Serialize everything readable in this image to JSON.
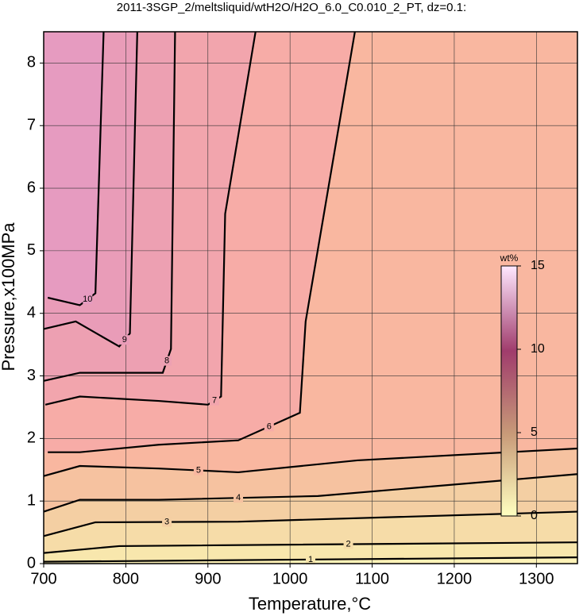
{
  "chart_data": {
    "type": "contour",
    "title": "2011-3SGP_2/meltsliquid/wtH2O/H2O_6.0_C0.010_2_PT, dz=0.1:",
    "xlabel": "Temperature,°C",
    "ylabel": "Pressure,x100MPa",
    "xlim": [
      700,
      1350
    ],
    "ylim": [
      0,
      8.5
    ],
    "xticks": [
      700,
      800,
      900,
      1000,
      1100,
      1200,
      1300
    ],
    "yticks": [
      0,
      1,
      2,
      3,
      4,
      5,
      6,
      7,
      8
    ],
    "grid": true,
    "base_color": "#fff3b8",
    "contours": [
      {
        "level": 1,
        "fill": "#f8e7ad",
        "x": [
          700,
          1350
        ],
        "y": [
          0.03,
          0.1
        ]
      },
      {
        "level": 2,
        "fill": "#f6dca8",
        "x": [
          700,
          792,
          1350
        ],
        "y": [
          0.17,
          0.28,
          0.34
        ]
      },
      {
        "level": 3,
        "fill": "#f4cfa3",
        "x": [
          700,
          763,
          937,
          1350
        ],
        "y": [
          0.44,
          0.66,
          0.67,
          0.83
        ]
      },
      {
        "level": 4,
        "fill": "#f6c2a0",
        "x": [
          700,
          744,
          840,
          1034,
          1350
        ],
        "y": [
          0.83,
          1.02,
          1.02,
          1.08,
          1.43
        ]
      },
      {
        "level": 5,
        "fill": "#f9b7a0",
        "x": [
          700,
          744,
          840,
          937,
          1082,
          1350
        ],
        "y": [
          1.4,
          1.56,
          1.52,
          1.46,
          1.65,
          1.84
        ]
      },
      {
        "level": 6,
        "fill": "#f7aca7",
        "x": [
          705,
          744,
          840,
          937,
          1012,
          1019,
          1079
        ],
        "y": [
          1.78,
          1.78,
          1.9,
          1.97,
          2.41,
          3.87,
          8.5
        ]
      },
      {
        "level": 7,
        "fill": "#f2a5ad",
        "x": [
          702,
          744,
          840,
          900,
          916,
          921,
          958
        ],
        "y": [
          2.54,
          2.67,
          2.6,
          2.54,
          2.67,
          5.59,
          8.5
        ]
      },
      {
        "level": 8,
        "fill": "#eda0b2",
        "x": [
          700,
          744,
          845,
          855,
          860
        ],
        "y": [
          2.92,
          3.05,
          3.05,
          3.43,
          8.5
        ]
      },
      {
        "level": 9,
        "fill": "#e99cb8",
        "x": [
          700,
          739,
          792,
          805,
          814
        ],
        "y": [
          3.75,
          3.87,
          3.47,
          3.68,
          8.5
        ]
      },
      {
        "level": 10,
        "fill": "#e69bc0",
        "x": [
          705,
          744,
          763,
          773
        ],
        "y": [
          4.25,
          4.13,
          4.32,
          8.5
        ]
      }
    ],
    "colorbar": {
      "label": "wt%",
      "lim": [
        0,
        15
      ],
      "ticks": [
        0,
        5,
        10,
        15
      ]
    }
  }
}
